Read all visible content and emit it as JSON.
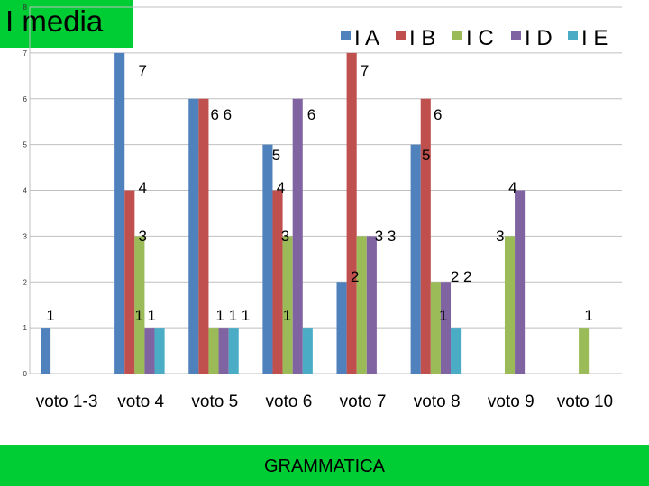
{
  "header": {
    "title": "I media"
  },
  "footer": {
    "label": "GRAMMATICA"
  },
  "chart_data": {
    "type": "bar",
    "categories": [
      "voto 1-3",
      "voto 4",
      "voto 5",
      "voto 6",
      "voto 7",
      "voto 8",
      "voto 9",
      "voto 10"
    ],
    "series": [
      {
        "name": "I A",
        "color": "#4f81bd",
        "values": [
          1,
          7,
          6,
          5,
          2,
          5,
          0,
          0
        ]
      },
      {
        "name": "I B",
        "color": "#c0504d",
        "values": [
          0,
          4,
          6,
          4,
          7,
          6,
          0,
          0
        ]
      },
      {
        "name": "I C",
        "color": "#9bbb59",
        "values": [
          0,
          3,
          1,
          3,
          3,
          2,
          3,
          1
        ]
      },
      {
        "name": "I D",
        "color": "#8064a2",
        "values": [
          0,
          1,
          1,
          6,
          3,
          2,
          4,
          0
        ]
      },
      {
        "name": "I E",
        "color": "#4bacc6",
        "values": [
          0,
          1,
          1,
          1,
          0,
          1,
          0,
          0
        ]
      }
    ],
    "ylim": [
      0,
      8
    ],
    "yticks": [
      0,
      1,
      2,
      3,
      4,
      5,
      6,
      7,
      8
    ],
    "grid": true,
    "legend": "top-right",
    "data_labels": [
      {
        "category": "voto 1-3",
        "text": "1"
      },
      {
        "category": "voto 4",
        "text": "7"
      },
      {
        "category": "voto 4",
        "text": "4"
      },
      {
        "category": "voto 4",
        "text": "3"
      },
      {
        "category": "voto 4",
        "text": "1 1"
      },
      {
        "category": "voto 5",
        "text": "6 6"
      },
      {
        "category": "voto 5",
        "text": "1 1 1"
      },
      {
        "category": "voto 6",
        "text": "6"
      },
      {
        "category": "voto 6",
        "text": "5"
      },
      {
        "category": "voto 6",
        "text": "4"
      },
      {
        "category": "voto 6",
        "text": "3"
      },
      {
        "category": "voto 6",
        "text": "1"
      },
      {
        "category": "voto 7",
        "text": "7"
      },
      {
        "category": "voto 7",
        "text": "3 3"
      },
      {
        "category": "voto 7",
        "text": "2"
      },
      {
        "category": "voto 8",
        "text": "6"
      },
      {
        "category": "voto 8",
        "text": "5"
      },
      {
        "category": "voto 8",
        "text": "2 2"
      },
      {
        "category": "voto 8",
        "text": "1"
      },
      {
        "category": "voto 9",
        "text": "4"
      },
      {
        "category": "voto 9",
        "text": "3"
      },
      {
        "category": "voto 10",
        "text": "1"
      }
    ]
  }
}
